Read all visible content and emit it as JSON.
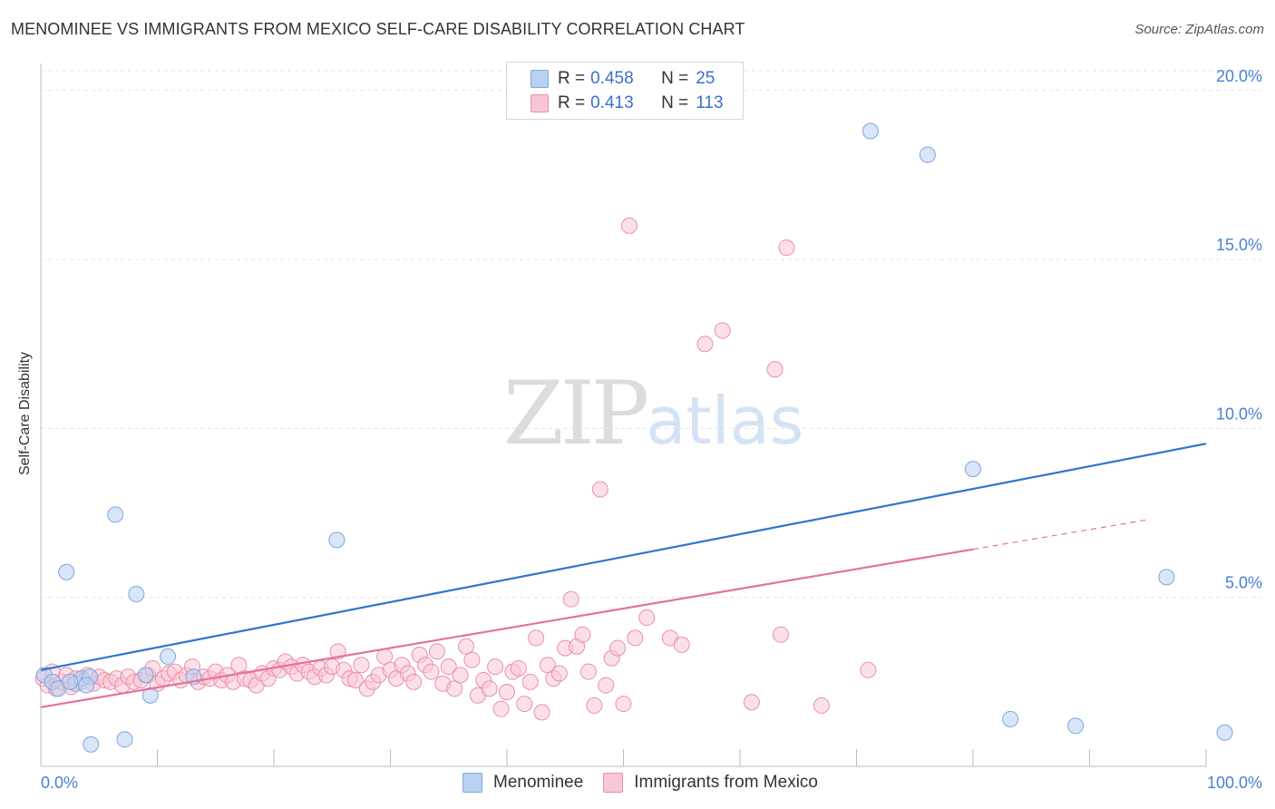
{
  "header": {
    "title": "MENOMINEE VS IMMIGRANTS FROM MEXICO SELF-CARE DISABILITY CORRELATION CHART",
    "source": "Source: ZipAtlas.com"
  },
  "watermark": {
    "zip": "ZIP",
    "atlas": "atlas"
  },
  "stats": {
    "r_label": "R =",
    "n_label": "N =",
    "rows": [
      {
        "series": "Menominee",
        "r": "0.458",
        "n": "25",
        "color": "#a9c8f0"
      },
      {
        "series": "Immigrants from Mexico",
        "r": "0.413",
        "n": "113",
        "color": "#f7b8cc"
      }
    ]
  },
  "colors": {
    "menominee_fill": "#b9d2f3",
    "menominee_stroke": "#7ea6dd",
    "menominee_line": "#2f74d0",
    "mexico_fill": "#f9c6d6",
    "mexico_stroke": "#e98fab",
    "mexico_line": "#e4729a",
    "grid": "#e2e2e2",
    "tick_text": "#4a7fd4"
  },
  "chart_data": {
    "type": "scatter",
    "title": "MENOMINEE VS IMMIGRANTS FROM MEXICO SELF-CARE DISABILITY CORRELATION CHART",
    "xlabel": "",
    "ylabel": "Self-Care Disability",
    "xlim": [
      0,
      100
    ],
    "ylim": [
      0,
      20.8
    ],
    "x_tick_labels": [
      "0.0%",
      "100.0%"
    ],
    "y_ticks": [
      5,
      10,
      15,
      20
    ],
    "y_tick_labels": [
      "5.0%",
      "10.0%",
      "15.0%",
      "20.0%"
    ],
    "legend": [
      "Menominee",
      "Immigrants from Mexico"
    ],
    "series": [
      {
        "name": "Menominee",
        "trend": {
          "x": [
            0,
            100
          ],
          "y": [
            2.85,
            9.55
          ],
          "dashed_from": null
        },
        "points": [
          [
            0.3,
            2.7
          ],
          [
            1.0,
            2.5
          ],
          [
            1.5,
            2.3
          ],
          [
            2.2,
            5.75
          ],
          [
            3.0,
            2.45
          ],
          [
            3.5,
            2.6
          ],
          [
            4.2,
            2.65
          ],
          [
            4.3,
            0.65
          ],
          [
            6.4,
            7.45
          ],
          [
            7.2,
            0.8
          ],
          [
            8.2,
            5.1
          ],
          [
            9.0,
            2.7
          ],
          [
            9.4,
            2.1
          ],
          [
            10.9,
            3.25
          ],
          [
            13.1,
            2.65
          ],
          [
            25.4,
            6.7
          ],
          [
            71.2,
            18.8
          ],
          [
            76.1,
            18.1
          ],
          [
            80.0,
            8.8
          ],
          [
            83.2,
            1.4
          ],
          [
            88.8,
            1.2
          ],
          [
            96.6,
            5.6
          ],
          [
            101.6,
            1.0
          ],
          [
            3.9,
            2.4
          ],
          [
            2.5,
            2.5
          ]
        ]
      },
      {
        "name": "Immigrants from Mexico",
        "trend": {
          "x": [
            0,
            95
          ],
          "y": [
            1.75,
            7.3
          ],
          "dashed_from": 80
        },
        "points": [
          [
            0.2,
            2.6
          ],
          [
            0.6,
            2.4
          ],
          [
            1.0,
            2.8
          ],
          [
            1.3,
            2.3
          ],
          [
            1.8,
            2.5
          ],
          [
            2.2,
            2.7
          ],
          [
            2.6,
            2.35
          ],
          [
            3.0,
            2.6
          ],
          [
            3.5,
            2.5
          ],
          [
            4.0,
            2.7
          ],
          [
            4.5,
            2.45
          ],
          [
            5.0,
            2.65
          ],
          [
            5.5,
            2.55
          ],
          [
            6.0,
            2.5
          ],
          [
            6.5,
            2.6
          ],
          [
            7.0,
            2.4
          ],
          [
            7.5,
            2.65
          ],
          [
            8.0,
            2.5
          ],
          [
            8.6,
            2.55
          ],
          [
            9.2,
            2.7
          ],
          [
            9.6,
            2.9
          ],
          [
            10.0,
            2.45
          ],
          [
            10.5,
            2.6
          ],
          [
            11.0,
            2.75
          ],
          [
            11.5,
            2.8
          ],
          [
            12.0,
            2.55
          ],
          [
            12.5,
            2.7
          ],
          [
            13.0,
            2.95
          ],
          [
            13.5,
            2.5
          ],
          [
            14.0,
            2.65
          ],
          [
            14.5,
            2.6
          ],
          [
            15.0,
            2.8
          ],
          [
            15.5,
            2.55
          ],
          [
            16.0,
            2.7
          ],
          [
            16.5,
            2.5
          ],
          [
            17.0,
            3.0
          ],
          [
            17.5,
            2.6
          ],
          [
            18.0,
            2.55
          ],
          [
            18.5,
            2.4
          ],
          [
            19.0,
            2.75
          ],
          [
            19.5,
            2.6
          ],
          [
            20.0,
            2.9
          ],
          [
            20.5,
            2.85
          ],
          [
            21.0,
            3.1
          ],
          [
            21.5,
            2.95
          ],
          [
            22.0,
            2.75
          ],
          [
            22.5,
            3.0
          ],
          [
            23.0,
            2.8
          ],
          [
            23.5,
            2.65
          ],
          [
            24.0,
            2.9
          ],
          [
            24.5,
            2.7
          ],
          [
            25.0,
            2.95
          ],
          [
            25.5,
            3.4
          ],
          [
            26.0,
            2.85
          ],
          [
            26.5,
            2.6
          ],
          [
            27.0,
            2.55
          ],
          [
            27.5,
            3.0
          ],
          [
            28.0,
            2.3
          ],
          [
            28.5,
            2.5
          ],
          [
            29.0,
            2.7
          ],
          [
            29.5,
            3.25
          ],
          [
            30.0,
            2.85
          ],
          [
            30.5,
            2.6
          ],
          [
            31.0,
            3.0
          ],
          [
            31.5,
            2.75
          ],
          [
            32.0,
            2.5
          ],
          [
            32.5,
            3.3
          ],
          [
            33.0,
            3.0
          ],
          [
            33.5,
            2.8
          ],
          [
            34.0,
            3.4
          ],
          [
            34.5,
            2.45
          ],
          [
            35.0,
            2.95
          ],
          [
            35.5,
            2.3
          ],
          [
            36.0,
            2.7
          ],
          [
            36.5,
            3.55
          ],
          [
            37.0,
            3.15
          ],
          [
            37.5,
            2.1
          ],
          [
            38.0,
            2.55
          ],
          [
            38.5,
            2.3
          ],
          [
            39.0,
            2.95
          ],
          [
            39.5,
            1.7
          ],
          [
            40.0,
            2.2
          ],
          [
            40.5,
            2.8
          ],
          [
            41.0,
            2.9
          ],
          [
            41.5,
            1.85
          ],
          [
            42.0,
            2.5
          ],
          [
            42.5,
            3.8
          ],
          [
            43.0,
            1.6
          ],
          [
            43.5,
            3.0
          ],
          [
            44.0,
            2.6
          ],
          [
            44.5,
            2.75
          ],
          [
            45.0,
            3.5
          ],
          [
            45.5,
            4.95
          ],
          [
            46.0,
            3.55
          ],
          [
            46.5,
            3.9
          ],
          [
            47.0,
            2.8
          ],
          [
            47.5,
            1.8
          ],
          [
            48.0,
            8.2
          ],
          [
            48.5,
            2.4
          ],
          [
            49.0,
            3.2
          ],
          [
            49.5,
            3.5
          ],
          [
            50.0,
            1.85
          ],
          [
            50.5,
            16.0
          ],
          [
            51.0,
            3.8
          ],
          [
            52.0,
            4.4
          ],
          [
            54.0,
            3.8
          ],
          [
            55.0,
            3.6
          ],
          [
            57.0,
            12.5
          ],
          [
            58.5,
            12.9
          ],
          [
            61.0,
            1.9
          ],
          [
            63.0,
            11.75
          ],
          [
            63.5,
            3.9
          ],
          [
            64.0,
            15.35
          ],
          [
            67.0,
            1.8
          ],
          [
            71.0,
            2.85
          ]
        ]
      }
    ]
  }
}
